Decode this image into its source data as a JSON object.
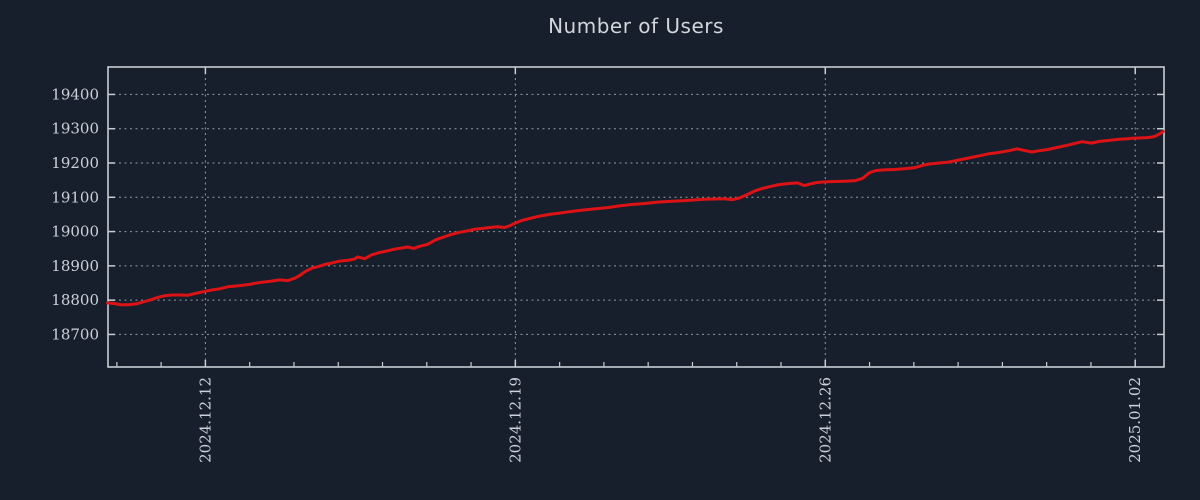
{
  "title": "Number of Users",
  "colors": {
    "background": "#161f2b",
    "line": "#dd1215",
    "grid": "#9099a4",
    "border": "#c8cdd4",
    "tick_text": "#ccd1d9",
    "title_text": "#d2d5da"
  },
  "chart_data": {
    "type": "line",
    "title": "Number of Users",
    "series_name": "number-of-users",
    "xlabel": "",
    "ylabel": "",
    "x_unit": "days since 2024-12-12",
    "xlim": [
      -2.2,
      21.65
    ],
    "ylim": [
      18605,
      19480
    ],
    "grid": true,
    "legend": false,
    "yticks": [
      {
        "value": 18700,
        "label": "18700"
      },
      {
        "value": 18800,
        "label": "18800"
      },
      {
        "value": 18900,
        "label": "18900"
      },
      {
        "value": 19000,
        "label": "19000"
      },
      {
        "value": 19100,
        "label": "19100"
      },
      {
        "value": 19200,
        "label": "19200"
      },
      {
        "value": 19300,
        "label": "19300"
      },
      {
        "value": 19400,
        "label": "19400"
      }
    ],
    "xticks_major": [
      {
        "pos": 0,
        "label": "2024.12.12"
      },
      {
        "pos": 7,
        "label": "2024.12.19"
      },
      {
        "pos": 14,
        "label": "2024.12.26"
      },
      {
        "pos": 21,
        "label": "2025.01.02"
      }
    ],
    "xticks_minor_interval_days": 1,
    "points": [
      [
        -2.21,
        18792
      ],
      [
        -2.05,
        18790
      ],
      [
        -1.89,
        18786
      ],
      [
        -1.71,
        18787
      ],
      [
        -1.53,
        18790
      ],
      [
        -1.37,
        18796
      ],
      [
        -1.21,
        18802
      ],
      [
        -1.08,
        18808
      ],
      [
        -0.92,
        18813
      ],
      [
        -0.76,
        18815
      ],
      [
        -0.58,
        18815
      ],
      [
        -0.4,
        18814
      ],
      [
        -0.24,
        18819
      ],
      [
        0.01,
        18826
      ],
      [
        0.16,
        18830
      ],
      [
        0.32,
        18833
      ],
      [
        0.5,
        18839
      ],
      [
        0.66,
        18841
      ],
      [
        0.82,
        18843
      ],
      [
        1.0,
        18846
      ],
      [
        1.11,
        18849
      ],
      [
        1.27,
        18852
      ],
      [
        1.41,
        18854
      ],
      [
        1.56,
        18857
      ],
      [
        1.68,
        18859
      ],
      [
        1.86,
        18857
      ],
      [
        2.02,
        18864
      ],
      [
        2.13,
        18872
      ],
      [
        2.26,
        18884
      ],
      [
        2.42,
        18894
      ],
      [
        2.58,
        18899
      ],
      [
        2.69,
        18904
      ],
      [
        2.85,
        18908
      ],
      [
        3.03,
        18914
      ],
      [
        3.21,
        18916
      ],
      [
        3.37,
        18920
      ],
      [
        3.44,
        18926
      ],
      [
        3.6,
        18921
      ],
      [
        3.75,
        18932
      ],
      [
        3.93,
        18939
      ],
      [
        4.12,
        18944
      ],
      [
        4.27,
        18949
      ],
      [
        4.43,
        18952
      ],
      [
        4.57,
        18955
      ],
      [
        4.7,
        18951
      ],
      [
        4.84,
        18957
      ],
      [
        5.02,
        18963
      ],
      [
        5.2,
        18976
      ],
      [
        5.38,
        18984
      ],
      [
        5.56,
        18992
      ],
      [
        5.74,
        18998
      ],
      [
        5.92,
        19002
      ],
      [
        6.08,
        19007
      ],
      [
        6.24,
        19009
      ],
      [
        6.42,
        19012
      ],
      [
        6.6,
        19014
      ],
      [
        6.76,
        19012
      ],
      [
        6.89,
        19018
      ],
      [
        6.98,
        19024
      ],
      [
        7.14,
        19032
      ],
      [
        7.32,
        19038
      ],
      [
        7.55,
        19045
      ],
      [
        7.77,
        19050
      ],
      [
        8.0,
        19054
      ],
      [
        8.22,
        19058
      ],
      [
        8.49,
        19062
      ],
      [
        8.79,
        19066
      ],
      [
        9.08,
        19070
      ],
      [
        9.35,
        19075
      ],
      [
        9.62,
        19079
      ],
      [
        9.92,
        19082
      ],
      [
        10.21,
        19086
      ],
      [
        10.48,
        19088
      ],
      [
        10.75,
        19090
      ],
      [
        11.04,
        19092
      ],
      [
        11.27,
        19094
      ],
      [
        11.5,
        19095
      ],
      [
        11.72,
        19096
      ],
      [
        11.9,
        19093
      ],
      [
        12.06,
        19098
      ],
      [
        12.24,
        19108
      ],
      [
        12.4,
        19118
      ],
      [
        12.56,
        19125
      ],
      [
        12.74,
        19131
      ],
      [
        12.92,
        19136
      ],
      [
        13.14,
        19140
      ],
      [
        13.37,
        19142
      ],
      [
        13.53,
        19134
      ],
      [
        13.69,
        19140
      ],
      [
        13.82,
        19143
      ],
      [
        13.98,
        19145
      ],
      [
        14.21,
        19146
      ],
      [
        14.43,
        19147
      ],
      [
        14.66,
        19148
      ],
      [
        14.84,
        19155
      ],
      [
        15.0,
        19172
      ],
      [
        15.15,
        19178
      ],
      [
        15.33,
        19180
      ],
      [
        15.56,
        19181
      ],
      [
        15.78,
        19183
      ],
      [
        16.01,
        19186
      ],
      [
        16.19,
        19193
      ],
      [
        16.35,
        19197
      ],
      [
        16.57,
        19200
      ],
      [
        16.8,
        19203
      ],
      [
        17.03,
        19209
      ],
      [
        17.25,
        19215
      ],
      [
        17.48,
        19221
      ],
      [
        17.7,
        19227
      ],
      [
        17.93,
        19231
      ],
      [
        18.15,
        19236
      ],
      [
        18.33,
        19241
      ],
      [
        18.52,
        19236
      ],
      [
        18.67,
        19232
      ],
      [
        18.83,
        19236
      ],
      [
        19.01,
        19239
      ],
      [
        19.19,
        19244
      ],
      [
        19.4,
        19250
      ],
      [
        19.6,
        19256
      ],
      [
        19.8,
        19262
      ],
      [
        20.01,
        19258
      ],
      [
        20.19,
        19263
      ],
      [
        20.41,
        19266
      ],
      [
        20.64,
        19269
      ],
      [
        20.82,
        19271
      ],
      [
        20.93,
        19272
      ],
      [
        21.09,
        19273
      ],
      [
        21.27,
        19274
      ],
      [
        21.43,
        19277
      ],
      [
        21.54,
        19284
      ],
      [
        21.63,
        19292
      ]
    ]
  }
}
